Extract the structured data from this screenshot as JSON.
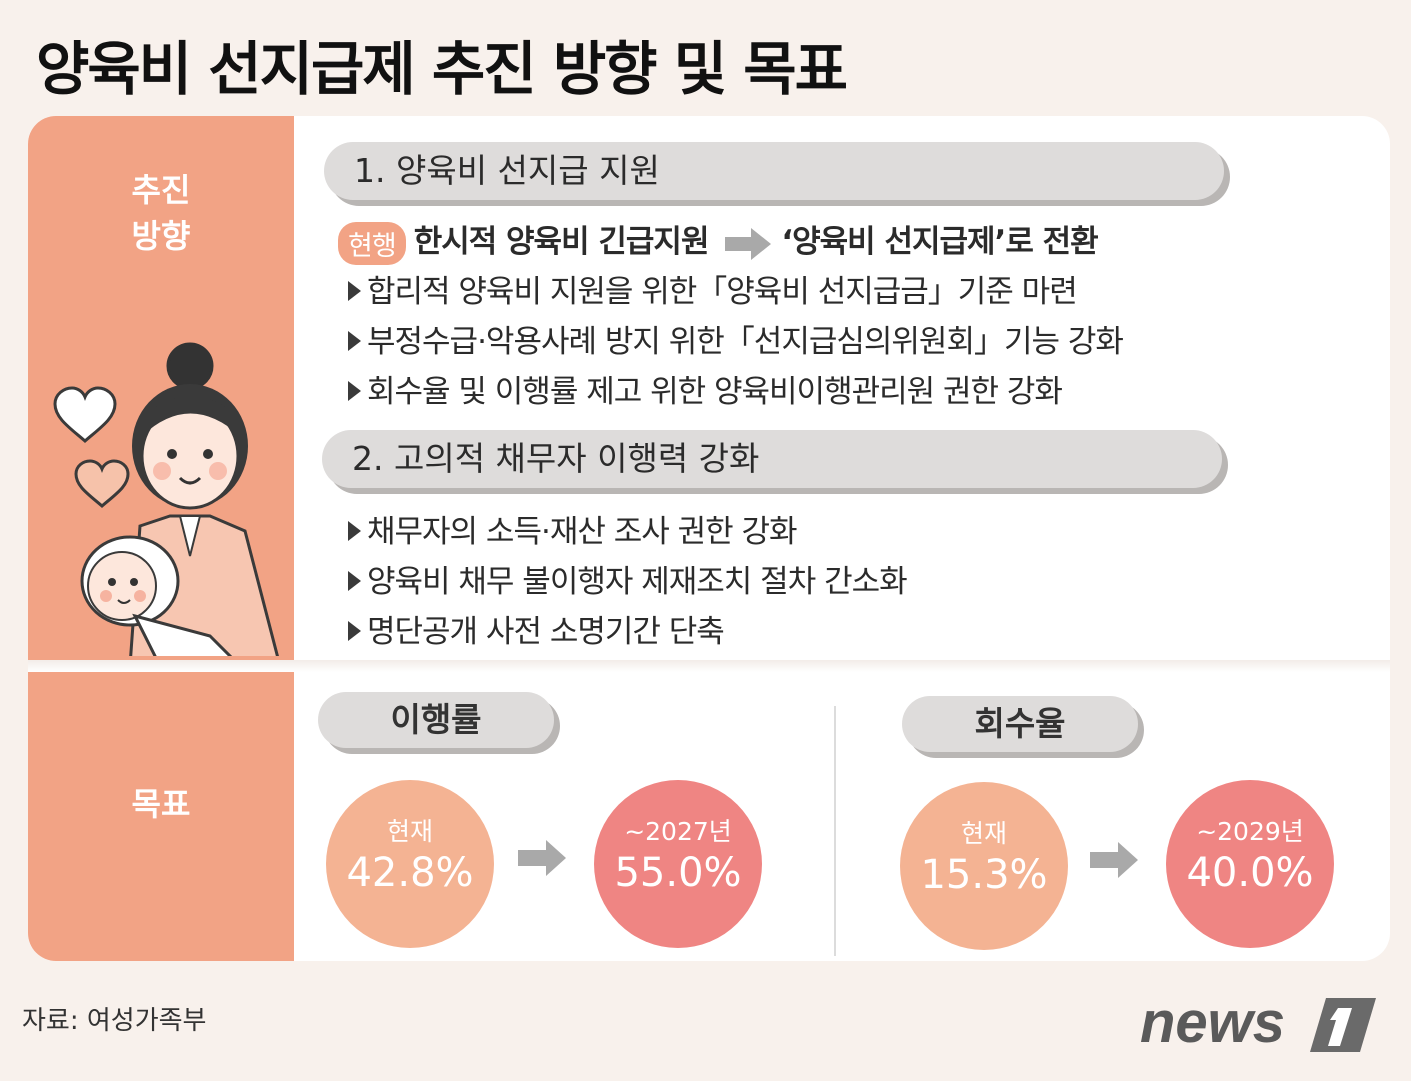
{
  "title": "양육비 선지급제 추진 방향 및 목표",
  "side": {
    "direction_label_1": "추진",
    "direction_label_2": "방향",
    "goal_label": "목표"
  },
  "section1": {
    "header": "1. 양육비 선지급 지원",
    "badge": "현행",
    "current": "한시적 양육비 긴급지원",
    "target": "‘양육비 선지급제’로 전환",
    "items": [
      "합리적 양육비 지원을 위한「양육비 선지급금」기준 마련",
      "부정수급·악용사례 방지 위한「선지급심의위원회」기능 강화",
      "회수율 및 이행률 제고 위한 양육비이행관리원 권한 강화"
    ]
  },
  "section2": {
    "header": "2. 고의적 채무자 이행력 강화",
    "items": [
      "채무자의 소득·재산 조사 권한 강화",
      "양육비 채무 불이행자 제재조치 절차 간소화",
      "명단공개 사전 소명기간 단축"
    ]
  },
  "goals": [
    {
      "label": "이행률",
      "current_caption": "현재",
      "current_value": "42.8%",
      "target_caption": "~2027년",
      "target_value": "55.0%"
    },
    {
      "label": "회수율",
      "current_caption": "현재",
      "current_value": "15.3%",
      "target_caption": "~2029년",
      "target_value": "40.0%"
    }
  ],
  "source": "자료: 여성가족부",
  "logo_text": "news",
  "colors": {
    "side": "#f2a385",
    "current_circle": "#f4b393",
    "target_circle": "#ef8583",
    "pill": "#dedcdb"
  }
}
